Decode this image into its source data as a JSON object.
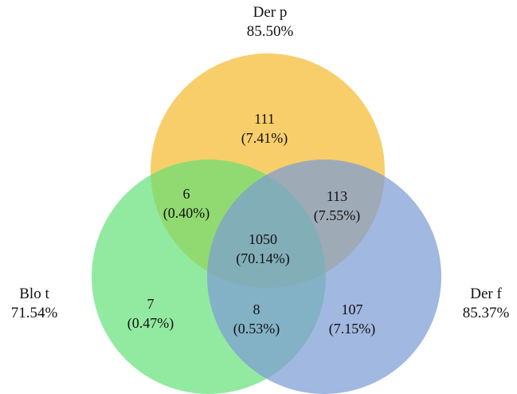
{
  "sets": [
    {
      "id": "derp",
      "name": "Der p",
      "percent": "85.50%",
      "color": "#f7c34a"
    },
    {
      "id": "blot",
      "name": "Blo t",
      "percent": "71.54%",
      "color": "#5fe075"
    },
    {
      "id": "derf",
      "name": "Der f",
      "percent": "85.37%",
      "color": "#7d9dd4"
    }
  ],
  "regions": {
    "derp_only": {
      "count": "111",
      "percent": "(7.41%)"
    },
    "derp_blot": {
      "count": "6",
      "percent": "(0.40%)"
    },
    "derp_derf": {
      "count": "113",
      "percent": "(7.55%)"
    },
    "all_three": {
      "count": "1050",
      "percent": "(70.14%)"
    },
    "blot_only": {
      "count": "7",
      "percent": "(0.47%)"
    },
    "blot_derf": {
      "count": "8",
      "percent": "(0.53%)"
    },
    "derf_only": {
      "count": "107",
      "percent": "(7.15%)"
    }
  }
}
